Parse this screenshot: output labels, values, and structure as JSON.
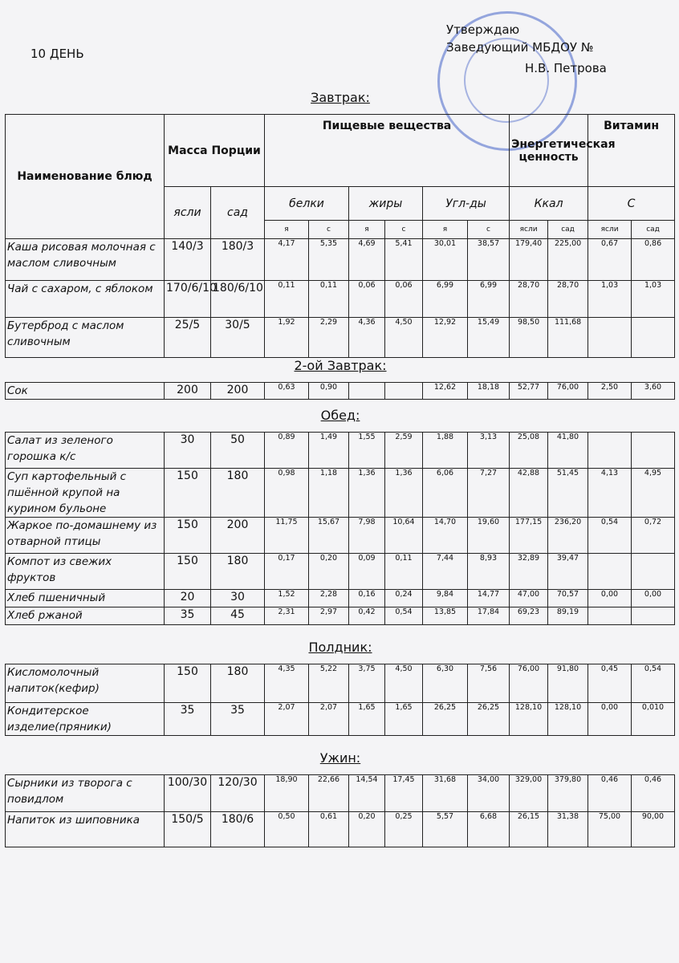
{
  "header": {
    "day": "10 ДЕНЬ",
    "approve": "Утверждаю",
    "position": "Заведующий МБДОУ №",
    "signer": "Н.В. Петрова"
  },
  "table_header": {
    "name": "Наименование блюд",
    "mass": "Масса Порции",
    "nutrients": "Пищевые вещества",
    "energy": "Энергетическая ценность",
    "vitamin": "Витамин",
    "mass_sub": [
      "ясли",
      "сад"
    ],
    "groups": [
      "белки",
      "жиры",
      "Угл-ды",
      "Ккал",
      "С"
    ],
    "sub": [
      "я",
      "с",
      "я",
      "с",
      "я",
      "с",
      "ясли",
      "сад",
      "ясли",
      "сад"
    ]
  },
  "sections": [
    {
      "title": "Завтрак:",
      "rows": [
        {
          "name": "Каша рисовая молочная с маслом сливочным",
          "cells": [
            "140/3",
            "180/3",
            "4,17",
            "5,35",
            "4,69",
            "5,41",
            "30,01",
            "38,57",
            "179,40",
            "225,00",
            "0,67",
            "0,86"
          ]
        },
        {
          "name": "Чай с сахаром, с яблоком",
          "cells": [
            "170/6/10",
            "180/6/10",
            "0,11",
            "0,11",
            "0,06",
            "0,06",
            "6,99",
            "6,99",
            "28,70",
            "28,70",
            "1,03",
            "1,03"
          ]
        },
        {
          "name": "Бутерброд с маслом сливочным",
          "cells": [
            "25/5",
            "30/5",
            "1,92",
            "2,29",
            "4,36",
            "4,50",
            "12,92",
            "15,49",
            "98,50",
            "111,68",
            null,
            null
          ]
        }
      ]
    },
    {
      "title": "2-ой Завтрак:",
      "rows": [
        {
          "name": "Сок",
          "cells": [
            "200",
            "200",
            "0,63",
            "0,90",
            null,
            null,
            "12,62",
            "18,18",
            "52,77",
            "76,00",
            "2,50",
            "3,60"
          ]
        }
      ]
    },
    {
      "title": "Обед:",
      "rows": [
        {
          "name": "Салат из зеленого горошка к/с",
          "cells": [
            "30",
            "50",
            "0,89",
            "1,49",
            "1,55",
            "2,59",
            "1,88",
            "3,13",
            "25,08",
            "41,80",
            null,
            null
          ]
        },
        {
          "name": "Суп картофельный с пшённой крупой на курином бульоне",
          "cells": [
            "150",
            "180",
            "0,98",
            "1,18",
            "1,36",
            "1,36",
            "6,06",
            "7,27",
            "42,88",
            "51,45",
            "4,13",
            "4,95"
          ]
        },
        {
          "name": "Жаркое по-домашнему из отварной птицы",
          "cells": [
            "150",
            "200",
            "11,75",
            "15,67",
            "7,98",
            "10,64",
            "14,70",
            "19,60",
            "177,15",
            "236,20",
            "0,54",
            "0,72"
          ]
        },
        {
          "name": "Компот из свежих фруктов",
          "cells": [
            "150",
            "180",
            "0,17",
            "0,20",
            "0,09",
            "0,11",
            "7,44",
            "8,93",
            "32,89",
            "39,47",
            null,
            null
          ]
        },
        {
          "name": "Хлеб пшеничный",
          "cells": [
            "20",
            "30",
            "1,52",
            "2,28",
            "0,16",
            "0,24",
            "9,84",
            "14,77",
            "47,00",
            "70,57",
            "0,00",
            "0,00"
          ]
        },
        {
          "name": "Хлеб ржаной",
          "cells": [
            "35",
            "45",
            "2,31",
            "2,97",
            "0,42",
            "0,54",
            "13,85",
            "17,84",
            "69,23",
            "89,19",
            null,
            null
          ]
        }
      ]
    },
    {
      "title": "Полдник:",
      "rows": [
        {
          "name": "Кисломолочный напиток(кефир)",
          "cells": [
            "150",
            "180",
            "4,35",
            "5,22",
            "3,75",
            "4,50",
            "6,30",
            "7,56",
            "76,00",
            "91,80",
            "0,45",
            "0,54"
          ]
        },
        {
          "name": "Кондитерское изделие(пряники)",
          "cells": [
            "35",
            "35",
            "2,07",
            "2,07",
            "1,65",
            "1,65",
            "26,25",
            "26,25",
            "128,10",
            "128,10",
            "0,00",
            "0,010"
          ]
        }
      ]
    },
    {
      "title": "Ужин:",
      "rows": [
        {
          "name": "Сырники из творога с повидлом",
          "cells": [
            "100/30",
            "120/30",
            "18,90",
            "22,66",
            "14,54",
            "17,45",
            "31,68",
            "34,00",
            "329,00",
            "379,80",
            "0,46",
            "0,46"
          ]
        },
        {
          "name": "Напиток из шиповника",
          "cells": [
            "150/5",
            "180/6",
            "0,50",
            "0,61",
            "0,20",
            "0,25",
            "5,57",
            "6,68",
            "26,15",
            "31,38",
            "75,00",
            "90,00"
          ]
        }
      ]
    }
  ]
}
